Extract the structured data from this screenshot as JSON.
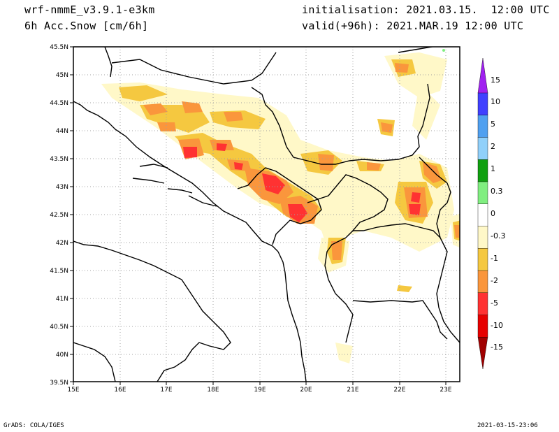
{
  "header": {
    "model": "wrf-nmmE_v3.9.1-e3km",
    "variable": "6h Acc.Snow [cm/6h]",
    "init": "initialisation: 2021.03.15.  12:00 UTC",
    "valid": "valid(+96h): 2021.MAR.19 12:00 UTC"
  },
  "footer": {
    "credit": "GrADS: COLA/IGES",
    "timestamp": "2021-03-15-23:06"
  },
  "axes": {
    "lon_range": [
      15,
      23.3
    ],
    "lat_range": [
      39.5,
      45.5
    ],
    "x_ticks": [
      "15E",
      "16E",
      "17E",
      "18E",
      "19E",
      "20E",
      "21E",
      "22E",
      "23E"
    ],
    "y_ticks": [
      "39.5N",
      "40N",
      "40.5N",
      "41N",
      "41.5N",
      "42N",
      "42.5N",
      "43N",
      "43.5N",
      "44N",
      "44.5N",
      "45N",
      "45.5N"
    ]
  },
  "legend": {
    "colors": [
      "#a00000",
      "#e60000",
      "#ff3232",
      "#fa963c",
      "#f5c840",
      "#fff8c8",
      "#ffffff",
      "#80ee80",
      "#10a010",
      "#90d0fa",
      "#50a0f0",
      "#4040ff",
      "#a020f0"
    ],
    "labels": [
      "-15",
      "-10",
      "-5",
      "-2",
      "-1",
      "-0.3",
      "0",
      "0.3",
      "1",
      "2",
      "5",
      "10",
      "15"
    ]
  }
}
